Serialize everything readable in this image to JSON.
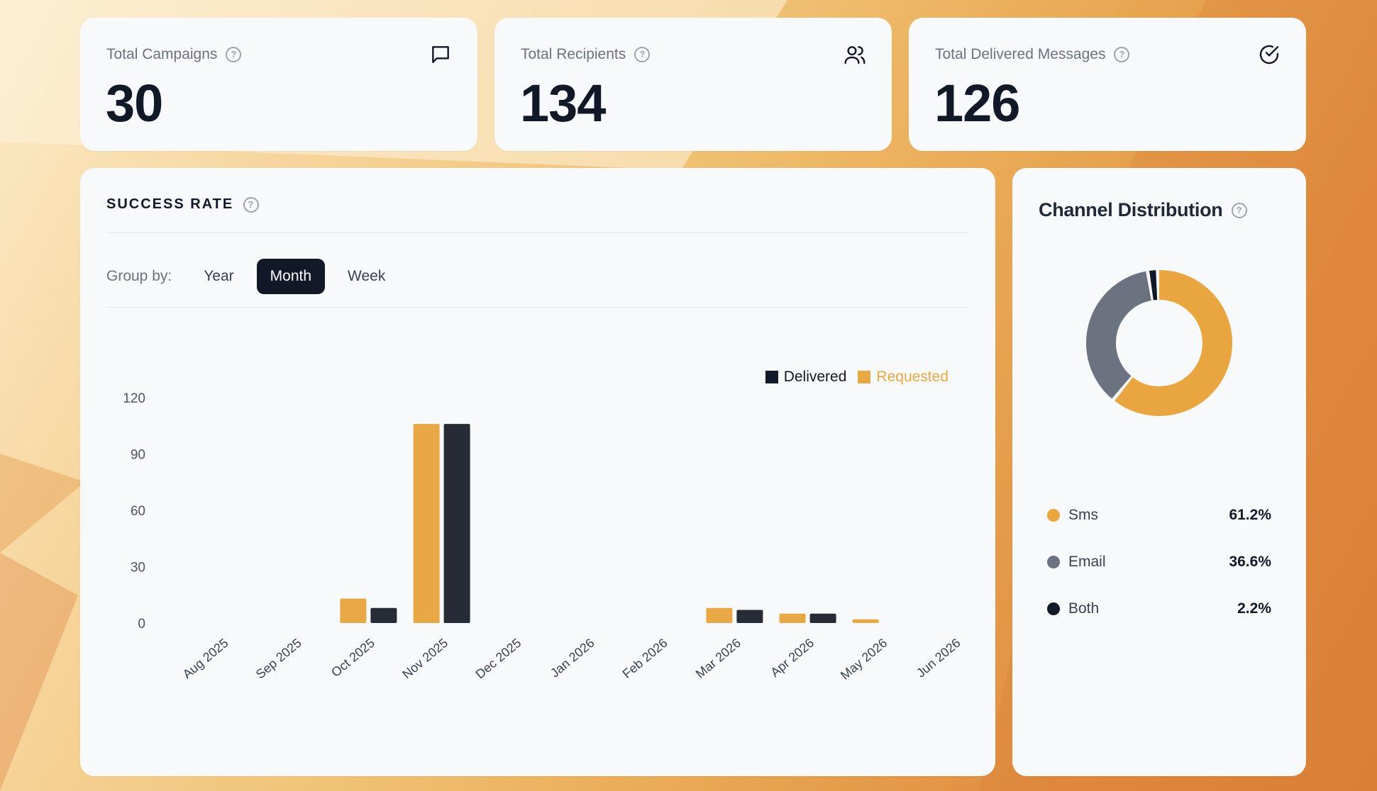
{
  "stats": [
    {
      "label": "Total Campaigns",
      "value": "30",
      "icon": "message-square-icon"
    },
    {
      "label": "Total Recipients",
      "value": "134",
      "icon": "users-icon"
    },
    {
      "label": "Total Delivered Messages",
      "value": "126",
      "icon": "check-circle-icon"
    }
  ],
  "success_rate": {
    "title": "SUCCESS RATE",
    "group_by_label": "Group by:",
    "group_options": [
      "Year",
      "Month",
      "Week"
    ],
    "selected_group": "Month"
  },
  "channel_distribution": {
    "title": "Channel Distribution",
    "items": [
      {
        "name": "Sms",
        "percent": "61.2%",
        "color": "#e8a540"
      },
      {
        "name": "Email",
        "percent": "36.6%",
        "color": "#6b7280"
      },
      {
        "name": "Both",
        "percent": "2.2%",
        "color": "#111827"
      }
    ]
  },
  "colors": {
    "requested": "#e8a846",
    "delivered": "#262b35",
    "accent_dark": "#111827"
  },
  "chart_data": [
    {
      "type": "bar",
      "categories": [
        "Aug 2025",
        "Sep 2025",
        "Oct 2025",
        "Nov 2025",
        "Dec 2025",
        "Jan 2026",
        "Feb 2026",
        "Mar 2026",
        "Apr 2026",
        "May 2026",
        "Jun 2026"
      ],
      "series": [
        {
          "name": "Requested",
          "values": [
            0,
            0,
            13,
            106,
            0,
            0,
            0,
            8,
            5,
            2,
            0
          ]
        },
        {
          "name": "Delivered",
          "values": [
            0,
            0,
            8,
            106,
            0,
            0,
            0,
            7,
            5,
            0,
            0
          ]
        }
      ],
      "legend_order": [
        "Delivered",
        "Requested"
      ],
      "yticks": [
        0,
        30,
        60,
        90,
        120
      ],
      "ylim": [
        0,
        120
      ],
      "legend_position": "top-right",
      "grid": false
    },
    {
      "type": "pie",
      "donut": true,
      "labels": [
        "Sms",
        "Email",
        "Both"
      ],
      "values": [
        61.2,
        36.6,
        2.2
      ]
    }
  ]
}
